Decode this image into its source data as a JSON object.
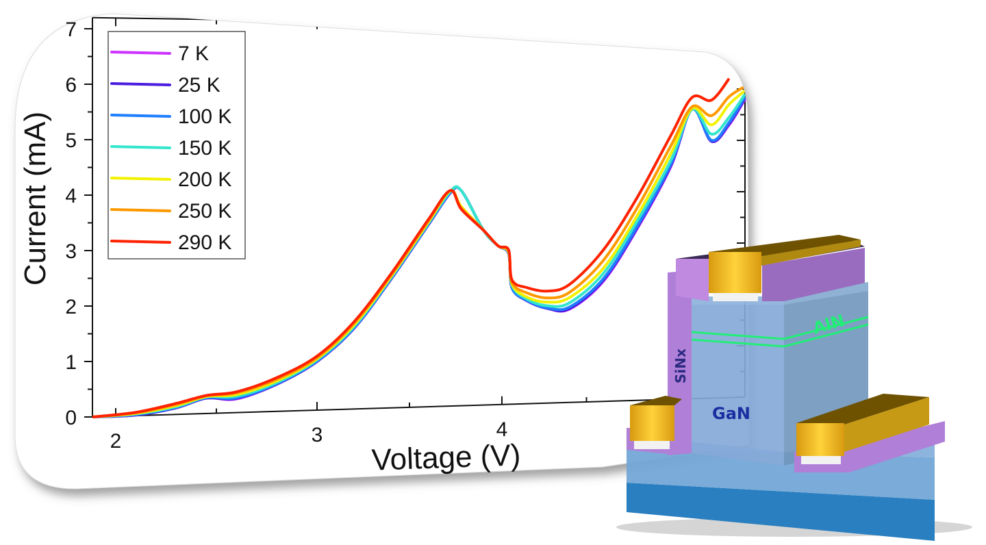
{
  "chart_data": {
    "type": "line",
    "xlabel": "Voltage (V)",
    "ylabel": "Current (mA)",
    "xlim": [
      1.88,
      5.42
    ],
    "ylim": [
      0,
      7.2
    ],
    "x_ticks": [
      "2",
      "3",
      "4"
    ],
    "y_ticks": [
      "0",
      "1",
      "2",
      "3",
      "4",
      "5",
      "6",
      "7"
    ],
    "grid": false,
    "legend_position": "top-left",
    "x": [
      1.88,
      2.1,
      2.3,
      2.45,
      2.6,
      2.8,
      3.0,
      3.2,
      3.4,
      3.6,
      3.72,
      3.78,
      3.9,
      3.98,
      4.04,
      4.06,
      4.15,
      4.27,
      4.4,
      4.6,
      4.8,
      5.0,
      5.12,
      5.23,
      5.33,
      5.42
    ],
    "series": [
      {
        "name": "7 K",
        "color": "#cc33ff",
        "values": [
          0,
          0.01,
          0.12,
          0.28,
          0.25,
          0.5,
          0.9,
          1.5,
          2.4,
          3.4,
          4.0,
          4.05,
          3.3,
          3.0,
          2.85,
          2.2,
          1.95,
          1.8,
          1.78,
          2.3,
          3.3,
          4.5,
          5.6,
          4.98,
          5.3,
          5.8
        ]
      },
      {
        "name": "25 K",
        "color": "#4b1ee0",
        "values": [
          0,
          0.01,
          0.12,
          0.28,
          0.26,
          0.5,
          0.9,
          1.5,
          2.4,
          3.4,
          4.0,
          4.05,
          3.3,
          3.0,
          2.85,
          2.2,
          1.95,
          1.8,
          1.79,
          2.32,
          3.32,
          4.52,
          5.6,
          4.98,
          5.32,
          5.82
        ]
      },
      {
        "name": "100 K",
        "color": "#1e7fff",
        "values": [
          0,
          0.02,
          0.13,
          0.29,
          0.27,
          0.51,
          0.91,
          1.51,
          2.41,
          3.41,
          4.01,
          4.05,
          3.3,
          3.0,
          2.86,
          2.2,
          1.96,
          1.81,
          1.82,
          2.35,
          3.35,
          4.55,
          5.6,
          5.0,
          5.35,
          5.85
        ]
      },
      {
        "name": "150 K",
        "color": "#33e6cc",
        "values": [
          0,
          0.03,
          0.14,
          0.3,
          0.3,
          0.53,
          0.93,
          1.53,
          2.43,
          3.43,
          4.03,
          4.05,
          3.3,
          3.0,
          2.87,
          2.25,
          1.98,
          1.85,
          1.9,
          2.45,
          3.45,
          4.62,
          5.6,
          5.12,
          5.45,
          5.9
        ]
      },
      {
        "name": "200 K",
        "color": "#f2f200",
        "values": [
          0,
          0.04,
          0.16,
          0.31,
          0.33,
          0.56,
          0.95,
          1.56,
          2.45,
          3.45,
          4.04,
          3.75,
          3.3,
          3.0,
          2.88,
          2.27,
          2.02,
          1.92,
          2.0,
          2.55,
          3.55,
          4.75,
          5.62,
          5.3,
          5.7,
          5.97
        ]
      },
      {
        "name": "250 K",
        "color": "#ff9900",
        "values": [
          0,
          0.05,
          0.18,
          0.32,
          0.36,
          0.59,
          0.97,
          1.59,
          2.47,
          3.47,
          4.05,
          3.72,
          3.3,
          3.0,
          2.9,
          2.3,
          2.1,
          2.0,
          2.1,
          2.7,
          3.7,
          4.9,
          5.65,
          5.48,
          5.85,
          6.05
        ]
      },
      {
        "name": "290 K",
        "color": "#ff2200",
        "values": [
          0,
          0.06,
          0.2,
          0.33,
          0.38,
          0.62,
          1.0,
          1.62,
          2.5,
          3.5,
          4.05,
          3.7,
          3.3,
          3.0,
          2.92,
          2.35,
          2.2,
          2.13,
          2.25,
          2.9,
          3.9,
          5.1,
          5.83,
          5.78,
          6.2,
          null
        ]
      }
    ]
  },
  "device": {
    "labels": {
      "aln": "AlN",
      "sinx": "SiNx",
      "gan": "GaN"
    },
    "colors": {
      "gold": "#e8b21a",
      "sinx": "#b07fd8",
      "gan": "#7fa6d6",
      "substrate": "#2a7fc0",
      "aln": "#22ee77"
    }
  }
}
